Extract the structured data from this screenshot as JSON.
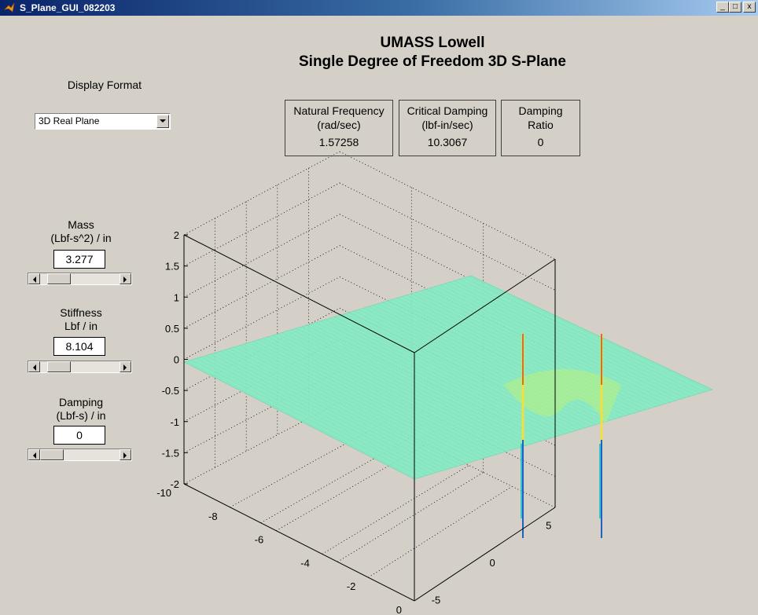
{
  "window": {
    "title": "S_Plane_GUI_082203",
    "minimize_glyph": "_",
    "maximize_glyph": "□",
    "close_glyph": "x"
  },
  "header": {
    "line1": "UMASS Lowell",
    "line2": "Single Degree of Freedom 3D S-Plane"
  },
  "display_format": {
    "label": "Display Format",
    "selected": "3D Real Plane"
  },
  "results": [
    {
      "label_line1": "Natural Frequency",
      "label_line2": "(rad/sec)",
      "value": "1.57258"
    },
    {
      "label_line1": "Critical Damping",
      "label_line2": "(lbf-in/sec)",
      "value": "10.3067"
    },
    {
      "label_line1": "Damping",
      "label_line2": "Ratio",
      "value": "0"
    }
  ],
  "controls": [
    {
      "label_line1": "Mass",
      "label_line2": "(Lbf-s^2) / in",
      "value": "3.277",
      "slider_fraction": 0.12
    },
    {
      "label_line1": "Stiffness",
      "label_line2": "Lbf / in",
      "value": "8.104",
      "slider_fraction": 0.13
    },
    {
      "label_line1": "Damping",
      "label_line2": "(Lbf-s) / in",
      "value": "0",
      "slider_fraction": 0.0
    }
  ],
  "plot": {
    "z_ticks": [
      "2",
      "1.5",
      "1",
      "0.5",
      "0",
      "-0.5",
      "-1",
      "-1.5",
      "-2"
    ],
    "real_axis_ticks": [
      "-10",
      "-8",
      "-6",
      "-4",
      "-2",
      "0"
    ],
    "imag_axis_ticks": [
      "-5",
      "0",
      "5"
    ],
    "surface_color": "#7fe8c0",
    "poles": {
      "real": 0,
      "imaginary": [
        -1.57258,
        1.57258
      ]
    }
  }
}
